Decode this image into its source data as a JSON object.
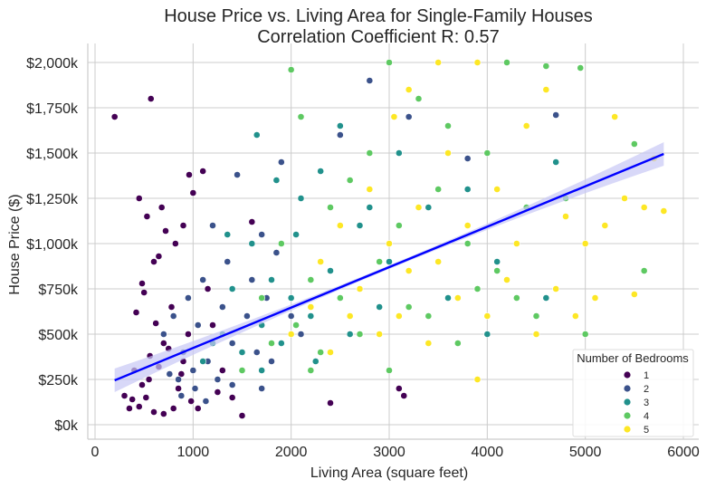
{
  "chart_data": {
    "type": "scatter",
    "title": "House Price vs. Living Area for Single-Family Houses",
    "subtitle": "Correlation Coefficient R: 0.57",
    "xlabel": "Living Area (square feet)",
    "ylabel": "House Price ($)",
    "xlim": [
      -80,
      6150
    ],
    "ylim": [
      -80,
      2110
    ],
    "x_ticks": [
      0,
      1000,
      2000,
      3000,
      4000,
      5000,
      6000
    ],
    "x_tick_labels": [
      "0",
      "1000",
      "2000",
      "3000",
      "4000",
      "5000",
      "6000"
    ],
    "y_ticks": [
      0,
      250,
      500,
      750,
      1000,
      1250,
      1500,
      1750,
      2000
    ],
    "y_tick_labels": [
      "$0k",
      "$250k",
      "$500k",
      "$750k",
      "$1,000k",
      "$1,250k",
      "$1,500k",
      "$1,750k",
      "$2,000k"
    ],
    "y_unit": "thousands of dollars",
    "grid": true,
    "legend": {
      "title": "Number of Bedrooms",
      "placement": "bottom-right",
      "entries": [
        "1",
        "2",
        "3",
        "4",
        "5"
      ],
      "colors": [
        "#440154",
        "#3b528b",
        "#21918c",
        "#5ec962",
        "#fde725"
      ]
    },
    "regression": {
      "x": [
        200,
        5800
      ],
      "y": [
        245,
        1495
      ],
      "color": "#0000ff",
      "ci_color": "#c8c8f5"
    },
    "series": [
      {
        "name": "1",
        "points": [
          [
            200,
            1700
          ],
          [
            570,
            1800
          ],
          [
            450,
            1250
          ],
          [
            530,
            1150
          ],
          [
            680,
            1200
          ],
          [
            720,
            1070
          ],
          [
            600,
            900
          ],
          [
            650,
            930
          ],
          [
            480,
            780
          ],
          [
            500,
            730
          ],
          [
            420,
            620
          ],
          [
            400,
            300
          ],
          [
            300,
            160
          ],
          [
            350,
            90
          ],
          [
            450,
            100
          ],
          [
            520,
            150
          ],
          [
            600,
            70
          ],
          [
            700,
            60
          ],
          [
            800,
            90
          ],
          [
            550,
            250
          ],
          [
            650,
            320
          ],
          [
            750,
            420
          ],
          [
            850,
            200
          ],
          [
            900,
            350
          ],
          [
            950,
            500
          ],
          [
            1000,
            1280
          ],
          [
            1100,
            1400
          ],
          [
            1150,
            750
          ],
          [
            1200,
            550
          ],
          [
            1300,
            300
          ],
          [
            1400,
            150
          ],
          [
            1500,
            50
          ],
          [
            1600,
            1120
          ],
          [
            3100,
            200
          ],
          [
            3150,
            160
          ],
          [
            2400,
            120
          ],
          [
            900,
            1100
          ],
          [
            620,
            560
          ],
          [
            780,
            650
          ],
          [
            880,
            280
          ],
          [
            980,
            130
          ],
          [
            1050,
            90
          ],
          [
            1250,
            180
          ],
          [
            700,
            450
          ],
          [
            560,
            380
          ],
          [
            480,
            220
          ],
          [
            380,
            140
          ],
          [
            820,
            1000
          ],
          [
            960,
            1380
          ]
        ]
      },
      {
        "name": "2",
        "points": [
          [
            700,
            500
          ],
          [
            800,
            600
          ],
          [
            850,
            250
          ],
          [
            900,
            400
          ],
          [
            950,
            700
          ],
          [
            1000,
            300
          ],
          [
            1050,
            550
          ],
          [
            1100,
            800
          ],
          [
            1150,
            350
          ],
          [
            1200,
            1100
          ],
          [
            1250,
            250
          ],
          [
            1300,
            650
          ],
          [
            1350,
            900
          ],
          [
            1400,
            450
          ],
          [
            1450,
            1380
          ],
          [
            1500,
            300
          ],
          [
            1550,
            600
          ],
          [
            1600,
            800
          ],
          [
            1650,
            400
          ],
          [
            1700,
            1050
          ],
          [
            1750,
            700
          ],
          [
            1800,
            350
          ],
          [
            1850,
            950
          ],
          [
            1900,
            1450
          ],
          [
            2000,
            600
          ],
          [
            2100,
            500
          ],
          [
            2300,
            900
          ],
          [
            2500,
            1600
          ],
          [
            2800,
            1900
          ],
          [
            3200,
            1700
          ],
          [
            4700,
            1710
          ],
          [
            3800,
            1470
          ],
          [
            760,
            280
          ],
          [
            880,
            160
          ],
          [
            1020,
            200
          ],
          [
            1130,
            130
          ],
          [
            1400,
            220
          ],
          [
            1700,
            200
          ]
        ]
      },
      {
        "name": "3",
        "points": [
          [
            1100,
            350
          ],
          [
            1200,
            450
          ],
          [
            1300,
            500
          ],
          [
            1400,
            750
          ],
          [
            1500,
            400
          ],
          [
            1600,
            1000
          ],
          [
            1650,
            1600
          ],
          [
            1700,
            550
          ],
          [
            1800,
            800
          ],
          [
            1850,
            1350
          ],
          [
            1900,
            450
          ],
          [
            2000,
            700
          ],
          [
            2050,
            1050
          ],
          [
            2100,
            1250
          ],
          [
            2200,
            600
          ],
          [
            2300,
            1400
          ],
          [
            2400,
            850
          ],
          [
            2500,
            1650
          ],
          [
            2600,
            500
          ],
          [
            2700,
            1100
          ],
          [
            2800,
            1200
          ],
          [
            2900,
            650
          ],
          [
            3000,
            900
          ],
          [
            3100,
            1500
          ],
          [
            3400,
            1200
          ],
          [
            3600,
            700
          ],
          [
            3800,
            1300
          ],
          [
            4000,
            500
          ],
          [
            4600,
            700
          ],
          [
            4700,
            1450
          ],
          [
            1700,
            300
          ],
          [
            1350,
            1050
          ],
          [
            2250,
            350
          ],
          [
            4100,
            900
          ]
        ]
      },
      {
        "name": "4",
        "points": [
          [
            1500,
            300
          ],
          [
            1700,
            700
          ],
          [
            1800,
            450
          ],
          [
            1900,
            1000
          ],
          [
            2000,
            1960
          ],
          [
            2050,
            550
          ],
          [
            2100,
            1700
          ],
          [
            2200,
            800
          ],
          [
            2300,
            400
          ],
          [
            2400,
            1200
          ],
          [
            2500,
            700
          ],
          [
            2600,
            1350
          ],
          [
            2700,
            500
          ],
          [
            2800,
            1500
          ],
          [
            2900,
            900
          ],
          [
            3000,
            2000
          ],
          [
            3100,
            1100
          ],
          [
            3200,
            650
          ],
          [
            3300,
            1800
          ],
          [
            3400,
            600
          ],
          [
            3500,
            1300
          ],
          [
            3600,
            1650
          ],
          [
            3700,
            450
          ],
          [
            3800,
            1000
          ],
          [
            3900,
            750
          ],
          [
            4000,
            1500
          ],
          [
            4100,
            850
          ],
          [
            4200,
            2000
          ],
          [
            4300,
            700
          ],
          [
            4400,
            1200
          ],
          [
            4500,
            600
          ],
          [
            4600,
            1980
          ],
          [
            4800,
            1250
          ],
          [
            5000,
            500
          ],
          [
            5500,
            1550
          ],
          [
            5600,
            850
          ],
          [
            4950,
            1970
          ],
          [
            3000,
            300
          ],
          [
            2200,
            300
          ]
        ]
      },
      {
        "name": "5",
        "points": [
          [
            2000,
            500
          ],
          [
            2200,
            650
          ],
          [
            2300,
            900
          ],
          [
            2400,
            400
          ],
          [
            2500,
            1100
          ],
          [
            2600,
            600
          ],
          [
            2700,
            750
          ],
          [
            2800,
            1300
          ],
          [
            2900,
            500
          ],
          [
            3000,
            1000
          ],
          [
            3050,
            1700
          ],
          [
            3100,
            600
          ],
          [
            3200,
            850
          ],
          [
            3300,
            1200
          ],
          [
            3400,
            450
          ],
          [
            3500,
            900
          ],
          [
            3600,
            1500
          ],
          [
            3700,
            700
          ],
          [
            3800,
            1100
          ],
          [
            3900,
            2000
          ],
          [
            4000,
            600
          ],
          [
            4100,
            1300
          ],
          [
            4200,
            800
          ],
          [
            4300,
            1000
          ],
          [
            4400,
            1650
          ],
          [
            4500,
            500
          ],
          [
            4600,
            1850
          ],
          [
            4700,
            750
          ],
          [
            4800,
            1150
          ],
          [
            4900,
            600
          ],
          [
            5000,
            1000
          ],
          [
            5100,
            700
          ],
          [
            5200,
            1100
          ],
          [
            5300,
            1700
          ],
          [
            5400,
            1250
          ],
          [
            5500,
            720
          ],
          [
            5600,
            1200
          ],
          [
            5800,
            1180
          ],
          [
            3900,
            250
          ],
          [
            5700,
            1470
          ],
          [
            3200,
            1850
          ],
          [
            3500,
            2000
          ]
        ]
      }
    ]
  }
}
